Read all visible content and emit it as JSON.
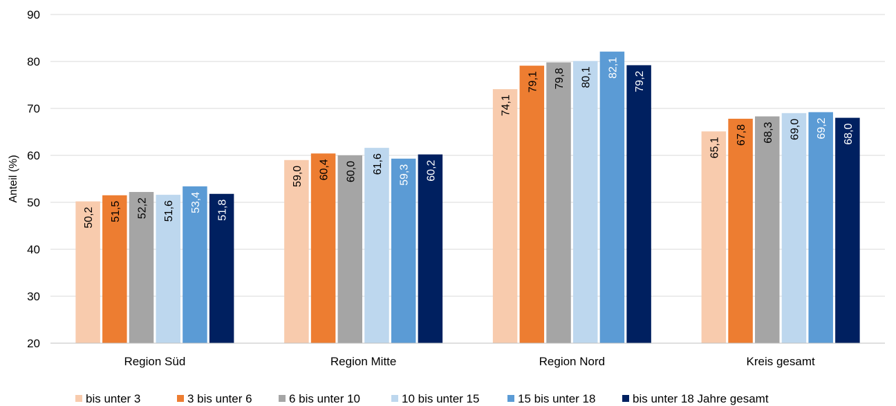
{
  "chart_data": {
    "type": "bar",
    "title": "",
    "xlabel": "",
    "ylabel": "Anteil (%)",
    "ylim": [
      20,
      90
    ],
    "yticks": [
      20,
      30,
      40,
      50,
      60,
      70,
      80,
      90
    ],
    "grid": true,
    "legend_position": "bottom",
    "categories": [
      "Region Süd",
      "Region Mitte",
      "Region Nord",
      "Kreis gesamt"
    ],
    "series": [
      {
        "name": "bis unter 3",
        "color": "#f8cbad",
        "label_color": "#000000",
        "values": [
          50.2,
          59.0,
          74.1,
          65.1
        ],
        "labels": [
          "50,2",
          "59,0",
          "74,1",
          "65,1"
        ]
      },
      {
        "name": "3 bis unter 6",
        "color": "#ed7d31",
        "label_color": "#000000",
        "values": [
          51.5,
          60.4,
          79.1,
          67.8
        ],
        "labels": [
          "51,5",
          "60,4",
          "79,1",
          "67,8"
        ]
      },
      {
        "name": "6 bis unter 10",
        "color": "#a5a5a5",
        "label_color": "#000000",
        "values": [
          52.2,
          60.0,
          79.8,
          68.3
        ],
        "labels": [
          "52,2",
          "60,0",
          "79,8",
          "68,3"
        ]
      },
      {
        "name": "10 bis unter 15",
        "color": "#bdd7ee",
        "label_color": "#000000",
        "values": [
          51.6,
          61.6,
          80.1,
          69.0
        ],
        "labels": [
          "51,6",
          "61,6",
          "80,1",
          "69,0"
        ]
      },
      {
        "name": "15 bis unter 18",
        "color": "#5b9bd5",
        "label_color": "#ffffff",
        "values": [
          53.4,
          59.3,
          82.1,
          69.2
        ],
        "labels": [
          "53,4",
          "59,3",
          "82,1",
          "69,2"
        ]
      },
      {
        "name": "bis unter 18 Jahre gesamt",
        "color": "#002060",
        "label_color": "#ffffff",
        "values": [
          51.8,
          60.2,
          79.2,
          68.0
        ],
        "labels": [
          "51,8",
          "60,2",
          "79,2",
          "68,0"
        ]
      }
    ]
  }
}
